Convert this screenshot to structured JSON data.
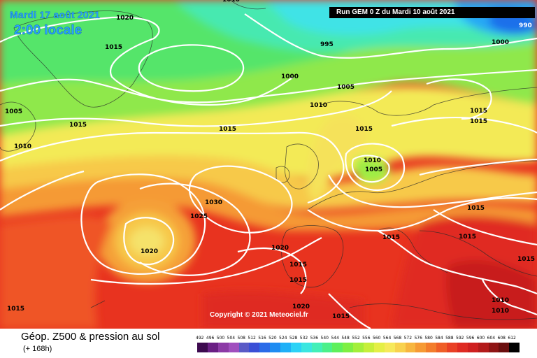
{
  "header": {
    "date_label": "Mardi 17 août 2021",
    "time_label": "2:00 locale",
    "run_label": "Run GEM 0 Z du Mardi 10 août 2021"
  },
  "copyright": "Copyright © 2021 Meteociel.fr",
  "legend": {
    "title": "Géop. Z500 & pression au sol",
    "subtitle": "(+ 168h)",
    "scale_values": [
      "492",
      "496",
      "500",
      "504",
      "508",
      "512",
      "516",
      "520",
      "524",
      "528",
      "532",
      "536",
      "540",
      "544",
      "548",
      "552",
      "556",
      "560",
      "564",
      "568",
      "572",
      "576",
      "580",
      "584",
      "588",
      "592",
      "596",
      "600",
      "604",
      "608",
      "612"
    ],
    "scale_colors": [
      "#3d0a4f",
      "#6a1f84",
      "#8c3aa6",
      "#a04fbe",
      "#5a5ac6",
      "#3a4fd6",
      "#2a6be8",
      "#1e8cf2",
      "#1fb0f7",
      "#2cd2f6",
      "#3be6e0",
      "#43efb8",
      "#4cf08a",
      "#5ef05c",
      "#7eef43",
      "#a3ef3a",
      "#c6ef3a",
      "#e4ef46",
      "#f6e95a",
      "#f8d24e",
      "#f7b63f",
      "#f69a34",
      "#f37d2c",
      "#ef5e27",
      "#e94025",
      "#df2a22",
      "#cf1f1f",
      "#b31a1a",
      "#8f1414",
      "#6a0e0e",
      "#000000"
    ]
  },
  "isobars": [
    {
      "id": "p1020a",
      "label": "1020"
    },
    {
      "id": "p1010top",
      "label": "1010"
    },
    {
      "id": "p1015a",
      "label": "1015"
    },
    {
      "id": "p995",
      "label": "995"
    },
    {
      "id": "p1000",
      "label": "1000"
    },
    {
      "id": "p990",
      "label": "990"
    },
    {
      "id": "p1000b",
      "label": "1000"
    },
    {
      "id": "p1005a",
      "label": "1005"
    },
    {
      "id": "p1005b",
      "label": "1005"
    },
    {
      "id": "p1010a",
      "label": "1010"
    },
    {
      "id": "p1015b",
      "label": "1015"
    },
    {
      "id": "p1015c",
      "label": "1015"
    },
    {
      "id": "p1010b",
      "label": "1010"
    },
    {
      "id": "p1015d",
      "label": "1015"
    },
    {
      "id": "p1015e",
      "label": "1015"
    },
    {
      "id": "p1015f",
      "label": "1015"
    },
    {
      "id": "p1010c",
      "label": "1010"
    },
    {
      "id": "p1005c",
      "label": "1005"
    },
    {
      "id": "p1030",
      "label": "1030"
    },
    {
      "id": "p1025",
      "label": "1025"
    },
    {
      "id": "p1020b",
      "label": "1020"
    },
    {
      "id": "p1015g",
      "label": "1015"
    },
    {
      "id": "p1015h",
      "label": "1015"
    },
    {
      "id": "p1020c",
      "label": "1020"
    },
    {
      "id": "p1015i",
      "label": "1015"
    },
    {
      "id": "p1015j",
      "label": "1015"
    },
    {
      "id": "p1015k",
      "label": "1015"
    },
    {
      "id": "p1015l",
      "label": "1015"
    },
    {
      "id": "p1015m",
      "label": "1015"
    },
    {
      "id": "p1020d",
      "label": "1020"
    },
    {
      "id": "p1015n",
      "label": "1015"
    },
    {
      "id": "p1010d",
      "label": "1010"
    },
    {
      "id": "p1010e",
      "label": "1010"
    }
  ]
}
